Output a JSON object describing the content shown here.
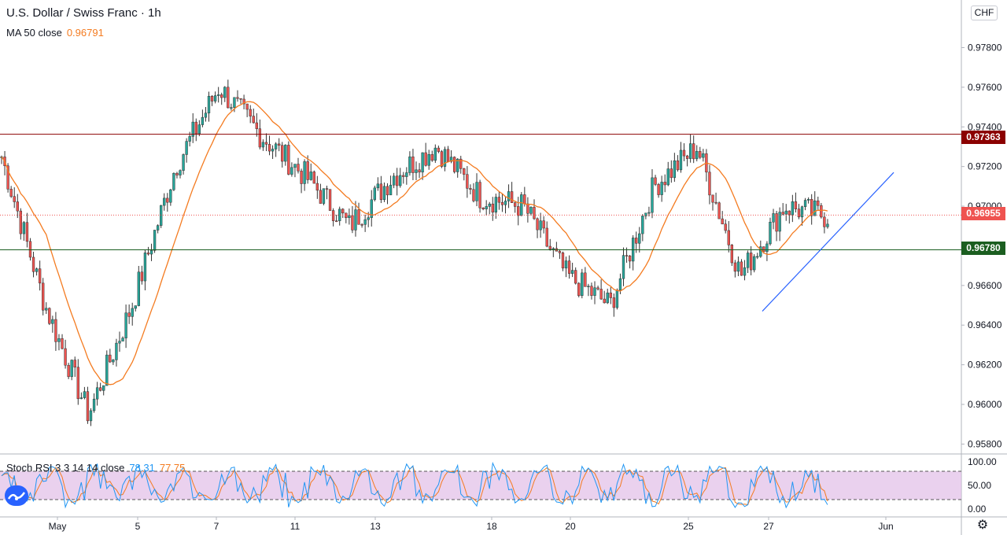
{
  "header": {
    "symbol_title": "U.S. Dollar / Swiss Franc · 1h",
    "ma_label": "MA 50 close",
    "ma_value": "0.96791",
    "currency": "CHF"
  },
  "indicator": {
    "label": "Stoch RSI 3 3 14 14 close",
    "k_value": "78.31",
    "d_value": "77.75"
  },
  "price_tags": {
    "resistance": "0.97363",
    "current": "0.96955",
    "support": "0.96780"
  },
  "colors": {
    "up": "#26a69a",
    "down": "#ef5350",
    "ma": "#f47b20",
    "resistance": "#8b0000",
    "current": "#ef5350",
    "support": "#1b5e20",
    "trendline": "#2962ff",
    "stoch_k": "#2196f3",
    "stoch_d": "#f47b20",
    "stoch_band": "#e1bee7"
  },
  "chart_data": {
    "type": "candlestick",
    "title": "U.S. Dollar / Swiss Franc · 1h",
    "y_ticks": [
      "0.97800",
      "0.97600",
      "0.97400",
      "0.97200",
      "0.97000",
      "0.96800",
      "0.96600",
      "0.96400",
      "0.96200",
      "0.96000",
      "0.95800"
    ],
    "y_range": [
      0.9575,
      0.9804
    ],
    "x_ticks": [
      "May",
      "5",
      "7",
      "11",
      "13",
      "18",
      "20",
      "25",
      "27",
      "Jun"
    ],
    "price_path": [
      [
        "May",
        0.9725
      ],
      [
        "2",
        0.965
      ],
      [
        "4",
        0.9595
      ],
      [
        "5",
        0.965
      ],
      [
        "6",
        0.972
      ],
      [
        "7",
        0.976
      ],
      [
        "8",
        0.9735
      ],
      [
        "11",
        0.9715
      ],
      [
        "12",
        0.969
      ],
      [
        "13",
        0.9715
      ],
      [
        "14",
        0.973
      ],
      [
        "18",
        0.9705
      ],
      [
        "19",
        0.97
      ],
      [
        "20",
        0.9665
      ],
      [
        "21",
        0.965
      ],
      [
        "22",
        0.971
      ],
      [
        "25",
        0.973
      ],
      [
        "26",
        0.9665
      ],
      [
        "27",
        0.97
      ],
      [
        "28",
        0.9695
      ]
    ],
    "horizontal_levels": [
      {
        "price": 0.97363,
        "style": "solid"
      },
      {
        "price": 0.96955,
        "style": "dotted"
      },
      {
        "price": 0.9678,
        "style": "solid"
      }
    ],
    "trendline": {
      "from": [
        0.9647
      ],
      "to": [
        0.9717
      ]
    },
    "moving_average": {
      "period": 50,
      "last": 0.96791
    },
    "stoch_rsi": {
      "ticks": [
        "100.00",
        "50.00",
        "0.00"
      ],
      "bands": [
        80,
        20
      ],
      "k": 78.31,
      "d": 77.75
    }
  }
}
